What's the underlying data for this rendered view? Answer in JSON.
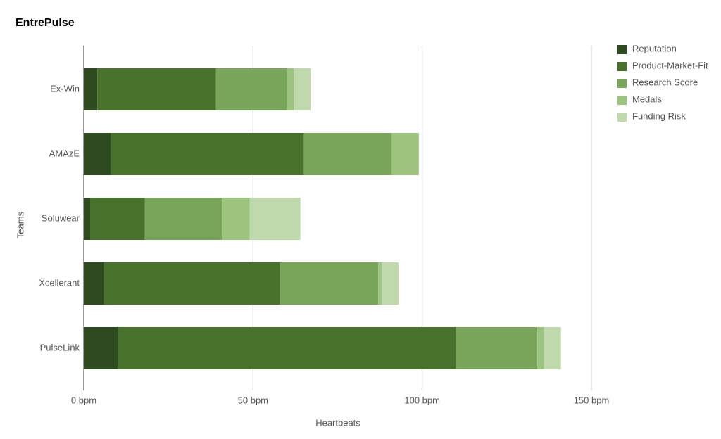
{
  "chart_data": {
    "type": "stacked-bar-horizontal",
    "title": "EntrePulse",
    "x_label": "Heartbeats",
    "y_label": "Teams",
    "categories": [
      "Ex-Win",
      "AMAzE",
      "Soluwear",
      "Xcellerant",
      "PulseLink"
    ],
    "series": [
      {
        "name": "Reputation",
        "color": "#2e4b20",
        "values": [
          4,
          8,
          2,
          6,
          10
        ]
      },
      {
        "name": "Product-Market-Fit",
        "color": "#48722c",
        "values": [
          35,
          57,
          16,
          52,
          100
        ]
      },
      {
        "name": "Research Score",
        "color": "#78a55a",
        "values": [
          21,
          26,
          23,
          29,
          24
        ]
      },
      {
        "name": "Medals",
        "color": "#9cc47f",
        "values": [
          2,
          8,
          8,
          1,
          2
        ]
      },
      {
        "name": "Funding Risk",
        "color": "#bfd9ad",
        "values": [
          5,
          0,
          15,
          5,
          5
        ]
      }
    ],
    "xlim": [
      0,
      150
    ],
    "xticks": [
      {
        "value": 0,
        "label": "0 bpm"
      },
      {
        "value": 50,
        "label": "50 bpm"
      },
      {
        "value": 100,
        "label": "100 bpm"
      },
      {
        "value": 150,
        "label": "150 bpm"
      }
    ],
    "grid": true,
    "legend": "right"
  }
}
